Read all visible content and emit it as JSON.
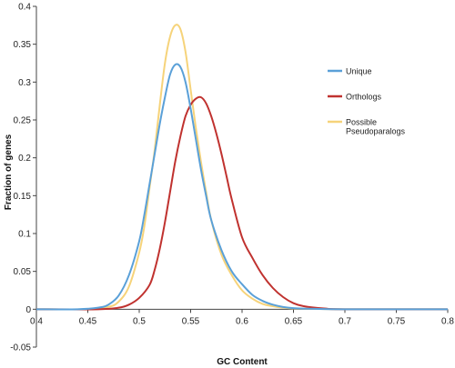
{
  "chart_data": {
    "type": "line",
    "title": "",
    "xlabel": "GC Content",
    "ylabel": "Fraction of genes",
    "xlim": [
      0.4,
      0.8
    ],
    "ylim": [
      -0.05,
      0.4
    ],
    "x_ticks": [
      {
        "value": 0.4,
        "label": "0.4"
      },
      {
        "value": 0.45,
        "label": "0.45"
      },
      {
        "value": 0.5,
        "label": "0.5"
      },
      {
        "value": 0.55,
        "label": "0.55"
      },
      {
        "value": 0.6,
        "label": "0.6"
      },
      {
        "value": 0.65,
        "label": "0.65"
      },
      {
        "value": 0.7,
        "label": "0.7"
      },
      {
        "value": 0.75,
        "label": "0.75"
      },
      {
        "value": 0.8,
        "label": "0.8"
      }
    ],
    "y_ticks": [
      {
        "value": -0.05,
        "label": "-0.05"
      },
      {
        "value": 0,
        "label": "0"
      },
      {
        "value": 0.05,
        "label": "0.05"
      },
      {
        "value": 0.1,
        "label": "0.1"
      },
      {
        "value": 0.15,
        "label": "0.15"
      },
      {
        "value": 0.2,
        "label": "0.2"
      },
      {
        "value": 0.25,
        "label": "0.25"
      },
      {
        "value": 0.3,
        "label": "0.3"
      },
      {
        "value": 0.35,
        "label": "0.35"
      },
      {
        "value": 0.4,
        "label": "0.4"
      }
    ],
    "grid": false,
    "legend_position": "right",
    "series": [
      {
        "name": "Unique",
        "color": "#5aa0d8",
        "x": [
          0.4,
          0.44,
          0.46,
          0.47,
          0.48,
          0.49,
          0.5,
          0.505,
          0.51,
          0.515,
          0.52,
          0.525,
          0.53,
          0.535,
          0.54,
          0.545,
          0.55,
          0.555,
          0.56,
          0.565,
          0.57,
          0.58,
          0.59,
          0.6,
          0.61,
          0.62,
          0.63,
          0.64,
          0.65,
          0.67,
          0.7,
          0.8
        ],
        "y": [
          0,
          0,
          0.002,
          0.006,
          0.018,
          0.045,
          0.09,
          0.125,
          0.165,
          0.205,
          0.245,
          0.28,
          0.31,
          0.323,
          0.32,
          0.3,
          0.265,
          0.225,
          0.185,
          0.15,
          0.118,
          0.078,
          0.05,
          0.033,
          0.019,
          0.011,
          0.006,
          0.003,
          0.0015,
          0.0005,
          0,
          0
        ]
      },
      {
        "name": "Orthologs",
        "color": "#c0322f",
        "x": [
          0.4,
          0.46,
          0.48,
          0.49,
          0.5,
          0.51,
          0.515,
          0.52,
          0.525,
          0.53,
          0.535,
          0.54,
          0.545,
          0.55,
          0.555,
          0.56,
          0.565,
          0.57,
          0.575,
          0.58,
          0.585,
          0.59,
          0.6,
          0.61,
          0.62,
          0.63,
          0.64,
          0.65,
          0.66,
          0.68,
          0.7,
          0.8
        ],
        "y": [
          0,
          0,
          0.002,
          0.006,
          0.015,
          0.032,
          0.052,
          0.08,
          0.115,
          0.155,
          0.195,
          0.228,
          0.255,
          0.27,
          0.278,
          0.28,
          0.272,
          0.255,
          0.232,
          0.205,
          0.175,
          0.145,
          0.095,
          0.068,
          0.045,
          0.028,
          0.016,
          0.008,
          0.004,
          0.001,
          0,
          0
        ]
      },
      {
        "name": "Possible Pseudoparalogs",
        "color": "#f6d37a",
        "x": [
          0.4,
          0.45,
          0.47,
          0.48,
          0.49,
          0.5,
          0.505,
          0.51,
          0.515,
          0.52,
          0.525,
          0.53,
          0.535,
          0.54,
          0.545,
          0.55,
          0.555,
          0.56,
          0.565,
          0.57,
          0.58,
          0.59,
          0.6,
          0.61,
          0.62,
          0.63,
          0.64,
          0.65,
          0.67,
          0.7,
          0.8
        ],
        "y": [
          0,
          0,
          0.003,
          0.01,
          0.03,
          0.075,
          0.11,
          0.16,
          0.21,
          0.27,
          0.325,
          0.36,
          0.375,
          0.37,
          0.34,
          0.29,
          0.24,
          0.195,
          0.155,
          0.118,
          0.072,
          0.045,
          0.025,
          0.014,
          0.007,
          0.004,
          0.002,
          0.001,
          0.0005,
          0,
          0
        ]
      }
    ]
  }
}
